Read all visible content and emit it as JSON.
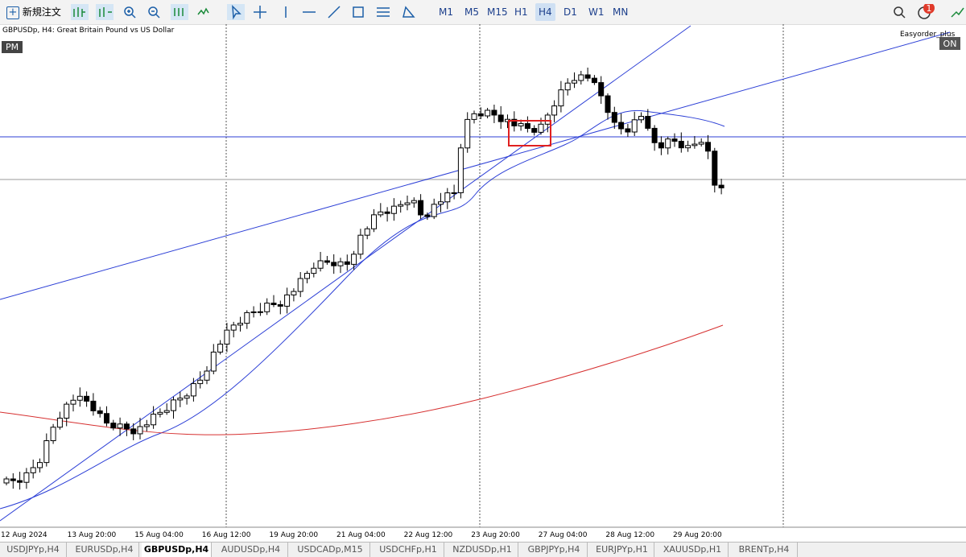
{
  "toolbar": {
    "new_order": "新規注文",
    "timeframes": [
      "M1",
      "M5",
      "M15",
      "H1",
      "H4",
      "D1",
      "W1",
      "MN"
    ],
    "active_timeframe": "H4",
    "notification_count": "1"
  },
  "chart": {
    "header": "GBPUSDp, H4:  Great Britain Pound vs US Dollar",
    "session_badge": "PM",
    "ea_name": "Easyorder_plus",
    "ea_state": "ON",
    "x_labels": [
      "12 Aug 2024",
      "13 Aug 20:00",
      "15 Aug 04:00",
      "16 Aug 12:00",
      "19 Aug 20:00",
      "21 Aug 04:00",
      "22 Aug 12:00",
      "23 Aug 20:00",
      "27 Aug 04:00",
      "28 Aug 12:00",
      "29 Aug 20:00"
    ]
  },
  "tabs": [
    "USDJPYp,H4",
    "EURUSDp,H4",
    "GBPUSDp,H4",
    "AUDUSDp,H4",
    "USDCADp,M15",
    "USDCHFp,H1",
    "NZDUSDp,H1",
    "GBPJPYp,H4",
    "EURJPYp,H1",
    "XAUUSDp,H1",
    "BRENTp,H4"
  ],
  "active_tab": "GBPUSDp,H4"
}
